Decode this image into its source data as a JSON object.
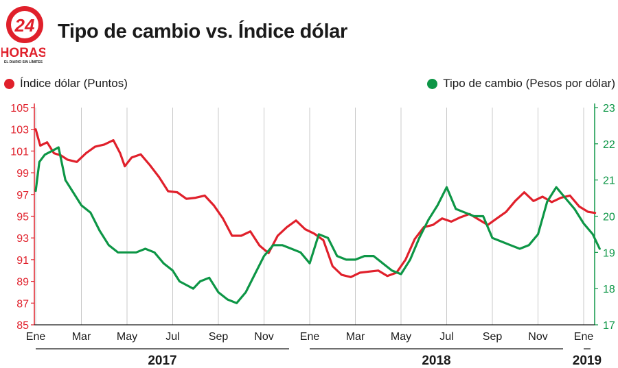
{
  "header": {
    "logo_number": "24",
    "logo_brand": "HORAS",
    "logo_tagline": "EL DIARIO SIN LÍMITES",
    "title": "Tipo de cambio vs. Índice dólar"
  },
  "colors": {
    "index_series": "#e0202b",
    "exchange_series": "#0d9646",
    "grid": "#c8c8c8"
  },
  "chart_data": {
    "type": "line",
    "title": "Tipo de cambio vs. Índice dólar",
    "legend_placement": "top",
    "grid": "vertical",
    "x_tick_labels": [
      "Ene",
      "Mar",
      "May",
      "Jul",
      "Sep",
      "Nov",
      "Ene",
      "Mar",
      "May",
      "Jul",
      "Sep",
      "Nov",
      "Ene"
    ],
    "years": [
      {
        "label": "2017",
        "span": [
          0,
          6
        ]
      },
      {
        "label": "2018",
        "span": [
          6,
          12
        ]
      },
      {
        "label": "2019",
        "span": [
          12,
          12.6
        ]
      }
    ],
    "y_left": {
      "ticks": [
        105,
        103,
        101,
        99,
        97,
        95,
        93,
        91,
        89,
        87,
        85
      ],
      "range": [
        85,
        105
      ]
    },
    "y_right": {
      "ticks": [
        23,
        22,
        21,
        20,
        19,
        18,
        17
      ],
      "range": [
        17,
        23
      ]
    },
    "series": [
      {
        "name": "Índice dólar (Puntos)",
        "axis": "left",
        "x": [
          0,
          0.1,
          0.25,
          0.4,
          0.55,
          0.7,
          0.9,
          1.1,
          1.3,
          1.5,
          1.7,
          1.85,
          1.95,
          2.1,
          2.3,
          2.5,
          2.7,
          2.9,
          3.1,
          3.3,
          3.5,
          3.7,
          3.9,
          4.1,
          4.3,
          4.5,
          4.7,
          4.9,
          5.1,
          5.3,
          5.5,
          5.7,
          5.9,
          6.1,
          6.3,
          6.5,
          6.7,
          6.9,
          7.1,
          7.3,
          7.5,
          7.7,
          7.9,
          8.1,
          8.3,
          8.5,
          8.7,
          8.9,
          9.1,
          9.3,
          9.5,
          9.7,
          9.9,
          10.1,
          10.3,
          10.5,
          10.7,
          10.9,
          11.1,
          11.3,
          11.5,
          11.7,
          11.9,
          12.1,
          12.25
        ],
        "values": [
          103.0,
          101.5,
          101.8,
          100.8,
          100.6,
          100.2,
          100.0,
          100.8,
          101.4,
          101.6,
          102.0,
          100.8,
          99.6,
          100.4,
          100.7,
          99.7,
          98.6,
          97.3,
          97.2,
          96.6,
          96.7,
          96.9,
          96.0,
          94.8,
          93.2,
          93.2,
          93.6,
          92.3,
          91.6,
          93.2,
          94.0,
          94.6,
          93.8,
          93.4,
          92.8,
          90.4,
          89.6,
          89.4,
          89.8,
          89.9,
          90.0,
          89.5,
          89.8,
          91.0,
          92.9,
          94.0,
          94.2,
          94.8,
          94.5,
          94.9,
          95.2,
          94.7,
          94.2,
          94.8,
          95.4,
          96.4,
          97.2,
          96.4,
          96.8,
          96.3,
          96.7,
          96.9,
          95.9,
          95.4,
          95.3
        ]
      },
      {
        "name": "Tipo de cambio (Pesos por dólar)",
        "axis": "right",
        "x": [
          0,
          0.08,
          0.2,
          0.35,
          0.5,
          0.65,
          0.8,
          1.0,
          1.2,
          1.4,
          1.6,
          1.8,
          2.0,
          2.2,
          2.4,
          2.6,
          2.8,
          3.0,
          3.15,
          3.3,
          3.45,
          3.6,
          3.8,
          4.0,
          4.2,
          4.4,
          4.6,
          4.8,
          5.0,
          5.2,
          5.4,
          5.6,
          5.8,
          6.0,
          6.2,
          6.4,
          6.6,
          6.8,
          7.0,
          7.2,
          7.4,
          7.6,
          7.8,
          8.0,
          8.2,
          8.4,
          8.6,
          8.8,
          9.0,
          9.2,
          9.4,
          9.6,
          9.8,
          10.0,
          10.2,
          10.4,
          10.6,
          10.8,
          11.0,
          11.2,
          11.4,
          11.6,
          11.8,
          12.0,
          12.2,
          12.35
        ],
        "values": [
          20.7,
          21.5,
          21.7,
          21.8,
          21.9,
          21.0,
          20.7,
          20.3,
          20.1,
          19.6,
          19.2,
          19.0,
          19.0,
          19.0,
          19.1,
          19.0,
          18.7,
          18.5,
          18.2,
          18.1,
          18.0,
          18.2,
          18.3,
          17.9,
          17.7,
          17.6,
          17.9,
          18.4,
          18.9,
          19.2,
          19.2,
          19.1,
          19.0,
          18.7,
          19.5,
          19.4,
          18.9,
          18.8,
          18.8,
          18.9,
          18.9,
          18.7,
          18.5,
          18.4,
          18.8,
          19.4,
          19.9,
          20.3,
          20.8,
          20.2,
          20.1,
          20.0,
          20.0,
          19.4,
          19.3,
          19.2,
          19.1,
          19.2,
          19.5,
          20.4,
          20.8,
          20.5,
          20.2,
          19.8,
          19.5,
          19.1
        ]
      }
    ]
  },
  "legend": {
    "left_label": "Índice dólar (Puntos)",
    "right_label": "Tipo de cambio (Pesos por dólar)"
  }
}
